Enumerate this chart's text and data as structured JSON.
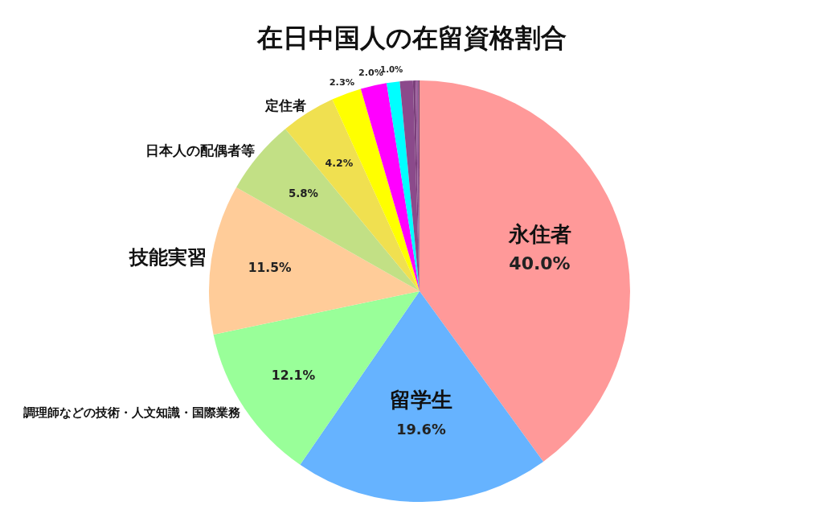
{
  "chart_data": {
    "type": "pie",
    "title": "在日中国人の在留資格割合",
    "categories": [
      "永住者",
      "留学生",
      "調理師などの技術・人文知識・国際業務",
      "技能実習",
      "日本人の配偶者等",
      "定住者",
      null,
      null,
      null,
      null,
      null,
      null,
      null
    ],
    "values": [
      40.0,
      19.6,
      12.1,
      11.5,
      5.8,
      4.2,
      2.3,
      2.0,
      1.0,
      1.0,
      0.2,
      0.2,
      0.1
    ],
    "value_labels": [
      "40.0%",
      "19.6%",
      "12.1%",
      "11.5%",
      "5.8%",
      "4.2%",
      "2.3%",
      "2.0%",
      "1.0%",
      null,
      null,
      null,
      null
    ],
    "colors": [
      "#ff9999",
      "#66b3ff",
      "#99ff99",
      "#ffcc99",
      "#c2e085",
      "#f0e050",
      "#ffff00",
      "#ff00ff",
      "#00ffff",
      "#8b4a8b",
      "#7a3f7a",
      "#9a5a9a",
      "#6e3a6e"
    ]
  }
}
